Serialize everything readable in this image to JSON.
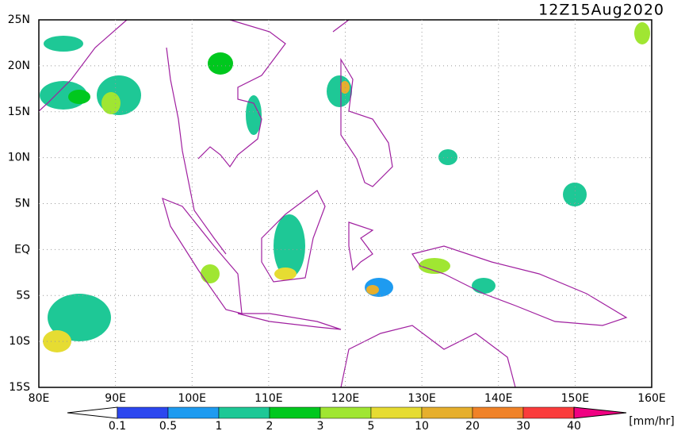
{
  "map": {
    "title": "12Z15Aug2020",
    "lon_labels": [
      "80E",
      "90E",
      "100E",
      "110E",
      "120E",
      "130E",
      "140E",
      "150E",
      "160E"
    ],
    "lat_labels": [
      "25N",
      "20N",
      "15N",
      "10N",
      "5N",
      "EQ",
      "5S",
      "10S",
      "15S"
    ],
    "colorbar": {
      "colors": [
        "#ffffff",
        "#2c47ef",
        "#1e9bf0",
        "#1ec896",
        "#00c81e",
        "#a0e632",
        "#e6dc32",
        "#e6af2d",
        "#f08228",
        "#fa3c3c",
        "#f00082"
      ],
      "labels": [
        "0.1",
        "0.5",
        "1",
        "2",
        "3",
        "5",
        "10",
        "20",
        "30",
        "40"
      ],
      "unit": "[mm/hr]"
    }
  }
}
